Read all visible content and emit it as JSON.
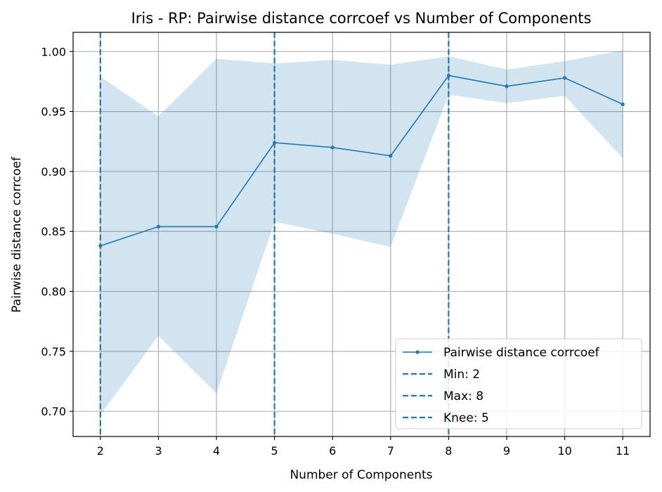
{
  "chart_data": {
    "type": "line",
    "title": "Iris - RP: Pairwise distance corrcoef vs Number of Components",
    "xlabel": "Number of Components",
    "ylabel": "Pairwise distance corrcoef",
    "xlim": [
      1.53,
      11.47
    ],
    "ylim": [
      0.679,
      1.016
    ],
    "xticks": [
      2,
      3,
      4,
      5,
      6,
      7,
      8,
      9,
      10,
      11
    ],
    "yticks": [
      0.7,
      0.75,
      0.8,
      0.85,
      0.9,
      0.95,
      1.0
    ],
    "ytick_labels": [
      "0.70",
      "0.75",
      "0.80",
      "0.85",
      "0.90",
      "0.95",
      "1.00"
    ],
    "grid": true,
    "legend_position": "lower-right",
    "series": [
      {
        "name": "Pairwise distance corrcoef",
        "x": [
          2,
          3,
          4,
          5,
          6,
          7,
          8,
          9,
          10,
          11
        ],
        "values": [
          0.838,
          0.854,
          0.854,
          0.924,
          0.92,
          0.913,
          0.98,
          0.971,
          0.978,
          0.956
        ],
        "band_upper": [
          0.979,
          0.946,
          0.994,
          0.99,
          0.993,
          0.989,
          0.996,
          0.985,
          0.992,
          1.001
        ],
        "band_lower": [
          0.697,
          0.763,
          0.715,
          0.858,
          0.848,
          0.837,
          0.964,
          0.957,
          0.963,
          0.911
        ],
        "color": "#1f77b4",
        "band_color": "#1f77b4"
      }
    ],
    "vlines": [
      {
        "name": "Min: 2",
        "x": 2,
        "color": "#1f77b4"
      },
      {
        "name": "Max: 8",
        "x": 8,
        "color": "#1f77b4"
      },
      {
        "name": "Knee: 5",
        "x": 5,
        "color": "#1f77b4"
      }
    ]
  }
}
